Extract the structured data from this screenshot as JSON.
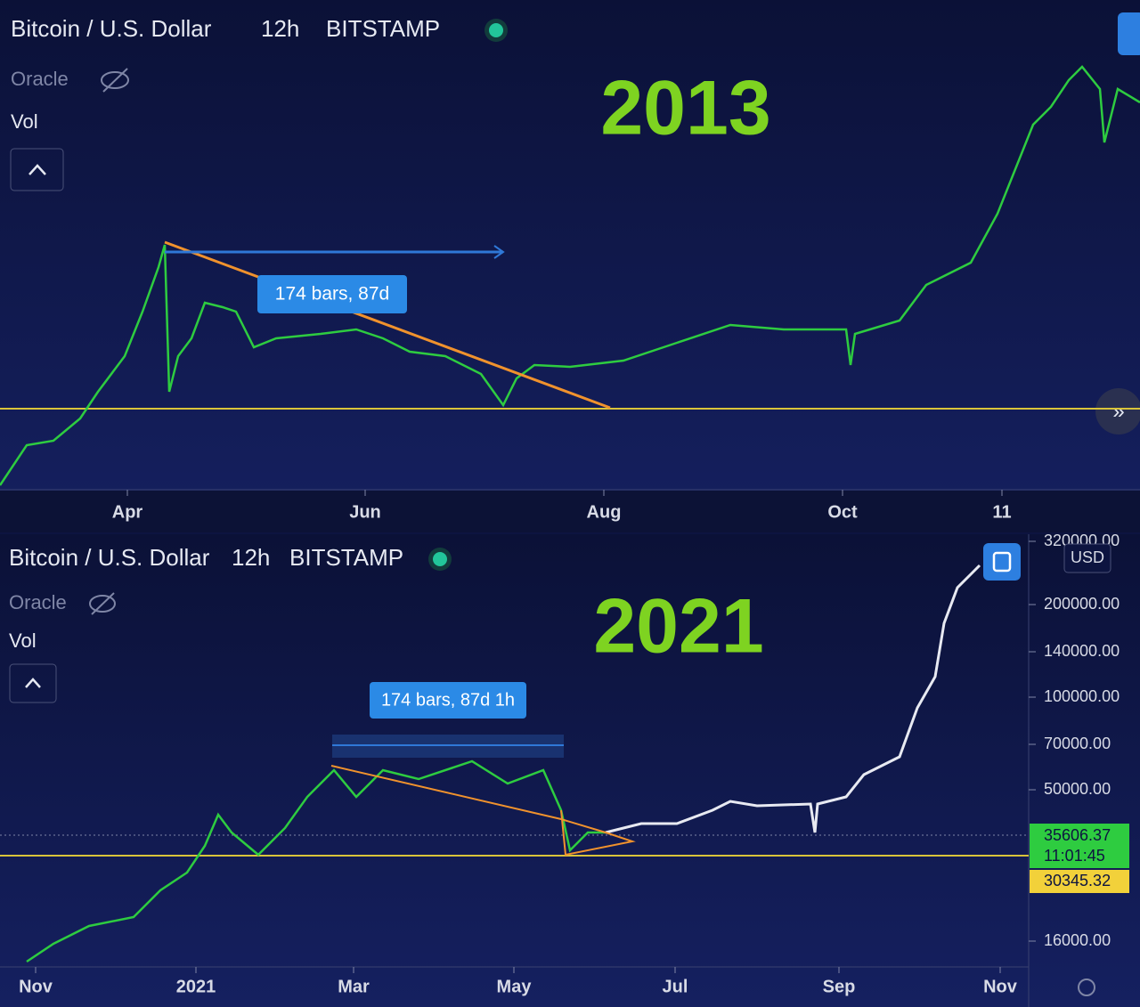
{
  "top_panel": {
    "symbol": "Bitcoin / U.S. Dollar",
    "interval": "12h",
    "exchange": "BITSTAMP",
    "indicator": "Oracle",
    "volume": "Vol",
    "year_label": "2013",
    "measure_label": "174 bars, 87d",
    "x_axis_labels": [
      "Apr",
      "Jun",
      "Aug",
      "Oct",
      "11"
    ]
  },
  "bottom_panel": {
    "symbol": "Bitcoin / U.S. Dollar",
    "interval": "12h",
    "exchange": "BITSTAMP",
    "indicator": "Oracle",
    "volume": "Vol",
    "year_label": "2021",
    "measure_label": "174 bars, 87d 1h",
    "x_axis_labels": [
      "Nov",
      "2021",
      "Mar",
      "May",
      "Jul",
      "Sep",
      "Nov"
    ],
    "price_axis": {
      "currency": "USD",
      "labels": [
        "320000.00",
        "200000.00",
        "140000.00",
        "100000.00",
        "70000.00",
        "50000.00",
        "16000.00"
      ],
      "last_price": "35606.37",
      "countdown": "11:01:45",
      "line_price": "30345.32"
    }
  }
}
